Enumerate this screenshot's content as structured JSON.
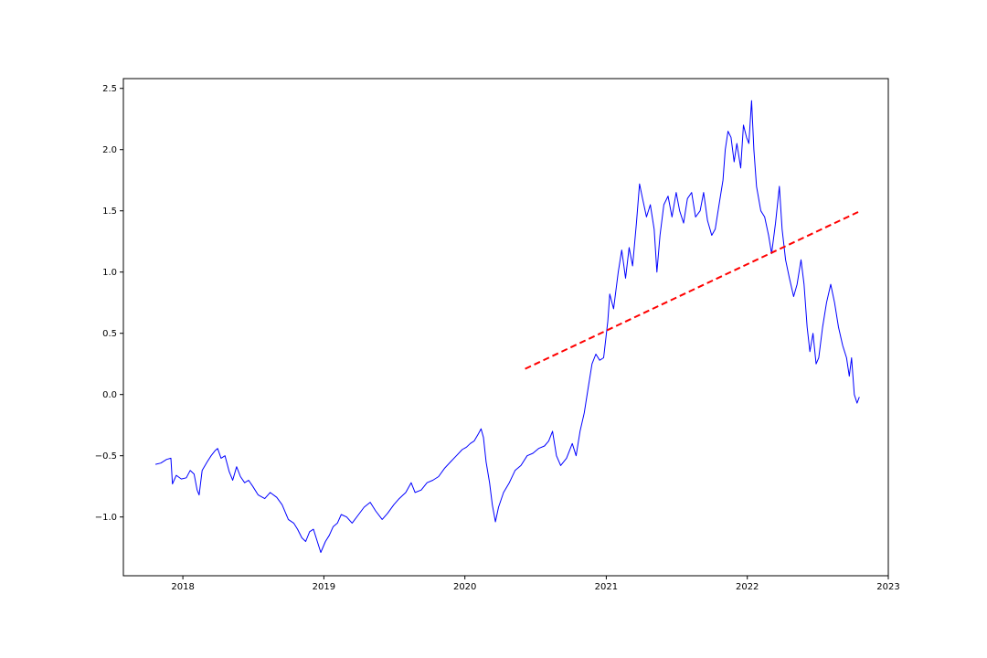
{
  "chart_data": {
    "type": "line",
    "title": "",
    "xlabel": "",
    "ylabel": "",
    "xlim": [
      "2017-07-31",
      "2023-01-01"
    ],
    "ylim": [
      -1.48,
      2.58
    ],
    "grid": false,
    "x_ticks": [
      "2018",
      "2019",
      "2020",
      "2021",
      "2022",
      "2023"
    ],
    "y_ticks": [
      "−1.0",
      "−0.5",
      "0.0",
      "0.5",
      "1.0",
      "1.5",
      "2.0",
      "2.5"
    ],
    "series": [
      {
        "color": "#0000ff",
        "style": "solid",
        "points": [
          [
            "2017-10-22",
            -0.57
          ],
          [
            "2017-11-05",
            -0.56
          ],
          [
            "2017-11-20",
            -0.53
          ],
          [
            "2017-12-01",
            -0.52
          ],
          [
            "2017-12-05",
            -0.73
          ],
          [
            "2017-12-15",
            -0.66
          ],
          [
            "2017-12-28",
            -0.69
          ],
          [
            "2018-01-10",
            -0.68
          ],
          [
            "2018-01-20",
            -0.62
          ],
          [
            "2018-01-30",
            -0.65
          ],
          [
            "2018-02-07",
            -0.78
          ],
          [
            "2018-02-12",
            -0.82
          ],
          [
            "2018-02-20",
            -0.62
          ],
          [
            "2018-03-05",
            -0.55
          ],
          [
            "2018-03-15",
            -0.5
          ],
          [
            "2018-03-25",
            -0.46
          ],
          [
            "2018-04-01",
            -0.44
          ],
          [
            "2018-04-10",
            -0.52
          ],
          [
            "2018-04-20",
            -0.5
          ],
          [
            "2018-05-01",
            -0.63
          ],
          [
            "2018-05-10",
            -0.7
          ],
          [
            "2018-05-20",
            -0.59
          ],
          [
            "2018-05-30",
            -0.67
          ],
          [
            "2018-06-10",
            -0.72
          ],
          [
            "2018-06-20",
            -0.7
          ],
          [
            "2018-07-01",
            -0.75
          ],
          [
            "2018-07-15",
            -0.82
          ],
          [
            "2018-08-01",
            -0.85
          ],
          [
            "2018-08-15",
            -0.8
          ],
          [
            "2018-09-01",
            -0.84
          ],
          [
            "2018-09-15",
            -0.9
          ],
          [
            "2018-10-01",
            -1.02
          ],
          [
            "2018-10-15",
            -1.05
          ],
          [
            "2018-10-25",
            -1.1
          ],
          [
            "2018-11-05",
            -1.17
          ],
          [
            "2018-11-15",
            -1.2
          ],
          [
            "2018-11-25",
            -1.12
          ],
          [
            "2018-12-05",
            -1.1
          ],
          [
            "2018-12-15",
            -1.2
          ],
          [
            "2018-12-24",
            -1.29
          ],
          [
            "2019-01-05",
            -1.2
          ],
          [
            "2019-01-15",
            -1.15
          ],
          [
            "2019-01-25",
            -1.08
          ],
          [
            "2019-02-05",
            -1.05
          ],
          [
            "2019-02-15",
            -0.98
          ],
          [
            "2019-03-01",
            -1.0
          ],
          [
            "2019-03-15",
            -1.05
          ],
          [
            "2019-04-01",
            -0.98
          ],
          [
            "2019-04-15",
            -0.92
          ],
          [
            "2019-05-01",
            -0.88
          ],
          [
            "2019-05-15",
            -0.95
          ],
          [
            "2019-06-01",
            -1.02
          ],
          [
            "2019-06-15",
            -0.97
          ],
          [
            "2019-07-01",
            -0.9
          ],
          [
            "2019-07-15",
            -0.85
          ],
          [
            "2019-08-01",
            -0.8
          ],
          [
            "2019-08-15",
            -0.72
          ],
          [
            "2019-08-25",
            -0.8
          ],
          [
            "2019-09-10",
            -0.78
          ],
          [
            "2019-09-25",
            -0.72
          ],
          [
            "2019-10-10",
            -0.7
          ],
          [
            "2019-10-25",
            -0.67
          ],
          [
            "2019-11-10",
            -0.6
          ],
          [
            "2019-11-25",
            -0.55
          ],
          [
            "2019-12-10",
            -0.5
          ],
          [
            "2019-12-25",
            -0.45
          ],
          [
            "2020-01-05",
            -0.43
          ],
          [
            "2020-01-15",
            -0.4
          ],
          [
            "2020-01-25",
            -0.38
          ],
          [
            "2020-02-05",
            -0.32
          ],
          [
            "2020-02-12",
            -0.28
          ],
          [
            "2020-02-18",
            -0.35
          ],
          [
            "2020-02-25",
            -0.55
          ],
          [
            "2020-03-05",
            -0.72
          ],
          [
            "2020-03-12",
            -0.9
          ],
          [
            "2020-03-20",
            -1.04
          ],
          [
            "2020-03-28",
            -0.92
          ],
          [
            "2020-04-10",
            -0.8
          ],
          [
            "2020-04-25",
            -0.72
          ],
          [
            "2020-05-10",
            -0.62
          ],
          [
            "2020-05-25",
            -0.58
          ],
          [
            "2020-06-10",
            -0.5
          ],
          [
            "2020-06-25",
            -0.48
          ],
          [
            "2020-07-10",
            -0.44
          ],
          [
            "2020-07-25",
            -0.42
          ],
          [
            "2020-08-05",
            -0.38
          ],
          [
            "2020-08-15",
            -0.3
          ],
          [
            "2020-08-25",
            -0.5
          ],
          [
            "2020-09-05",
            -0.58
          ],
          [
            "2020-09-20",
            -0.52
          ],
          [
            "2020-10-05",
            -0.4
          ],
          [
            "2020-10-15",
            -0.5
          ],
          [
            "2020-10-25",
            -0.3
          ],
          [
            "2020-11-05",
            -0.15
          ],
          [
            "2020-11-15",
            0.05
          ],
          [
            "2020-11-25",
            0.25
          ],
          [
            "2020-12-05",
            0.33
          ],
          [
            "2020-12-15",
            0.28
          ],
          [
            "2020-12-25",
            0.3
          ],
          [
            "2021-01-05",
            0.6
          ],
          [
            "2021-01-10",
            0.82
          ],
          [
            "2021-01-20",
            0.7
          ],
          [
            "2021-02-01",
            1.0
          ],
          [
            "2021-02-10",
            1.18
          ],
          [
            "2021-02-20",
            0.95
          ],
          [
            "2021-03-01",
            1.2
          ],
          [
            "2021-03-10",
            1.05
          ],
          [
            "2021-03-20",
            1.4
          ],
          [
            "2021-03-28",
            1.72
          ],
          [
            "2021-04-05",
            1.6
          ],
          [
            "2021-04-15",
            1.45
          ],
          [
            "2021-04-25",
            1.55
          ],
          [
            "2021-05-05",
            1.35
          ],
          [
            "2021-05-12",
            1.0
          ],
          [
            "2021-05-20",
            1.3
          ],
          [
            "2021-05-30",
            1.55
          ],
          [
            "2021-06-10",
            1.62
          ],
          [
            "2021-06-20",
            1.45
          ],
          [
            "2021-07-01",
            1.65
          ],
          [
            "2021-07-10",
            1.5
          ],
          [
            "2021-07-20",
            1.4
          ],
          [
            "2021-07-30",
            1.6
          ],
          [
            "2021-08-10",
            1.65
          ],
          [
            "2021-08-20",
            1.45
          ],
          [
            "2021-09-01",
            1.5
          ],
          [
            "2021-09-10",
            1.65
          ],
          [
            "2021-09-20",
            1.42
          ],
          [
            "2021-10-01",
            1.3
          ],
          [
            "2021-10-10",
            1.35
          ],
          [
            "2021-10-20",
            1.55
          ],
          [
            "2021-10-30",
            1.75
          ],
          [
            "2021-11-05",
            2.0
          ],
          [
            "2021-11-12",
            2.15
          ],
          [
            "2021-11-20",
            2.1
          ],
          [
            "2021-11-28",
            1.9
          ],
          [
            "2021-12-05",
            2.05
          ],
          [
            "2021-12-15",
            1.85
          ],
          [
            "2021-12-22",
            2.2
          ],
          [
            "2021-12-30",
            2.1
          ],
          [
            "2022-01-05",
            2.05
          ],
          [
            "2022-01-12",
            2.4
          ],
          [
            "2022-01-18",
            2.0
          ],
          [
            "2022-01-25",
            1.7
          ],
          [
            "2022-02-05",
            1.5
          ],
          [
            "2022-02-15",
            1.45
          ],
          [
            "2022-02-25",
            1.3
          ],
          [
            "2022-03-05",
            1.15
          ],
          [
            "2022-03-15",
            1.4
          ],
          [
            "2022-03-25",
            1.7
          ],
          [
            "2022-04-01",
            1.35
          ],
          [
            "2022-04-10",
            1.1
          ],
          [
            "2022-04-20",
            0.95
          ],
          [
            "2022-05-01",
            0.8
          ],
          [
            "2022-05-10",
            0.9
          ],
          [
            "2022-05-20",
            1.1
          ],
          [
            "2022-05-28",
            0.9
          ],
          [
            "2022-06-05",
            0.55
          ],
          [
            "2022-06-12",
            0.35
          ],
          [
            "2022-06-20",
            0.5
          ],
          [
            "2022-06-28",
            0.25
          ],
          [
            "2022-07-05",
            0.3
          ],
          [
            "2022-07-15",
            0.55
          ],
          [
            "2022-07-25",
            0.75
          ],
          [
            "2022-08-05",
            0.9
          ],
          [
            "2022-08-15",
            0.75
          ],
          [
            "2022-08-25",
            0.55
          ],
          [
            "2022-09-05",
            0.4
          ],
          [
            "2022-09-15",
            0.3
          ],
          [
            "2022-09-22",
            0.15
          ],
          [
            "2022-09-28",
            0.3
          ],
          [
            "2022-10-05",
            0.0
          ],
          [
            "2022-10-12",
            -0.07
          ],
          [
            "2022-10-18",
            -0.02
          ]
        ]
      },
      {
        "color": "#ff0000",
        "style": "dashed",
        "points": [
          [
            "2020-06-05",
            0.21
          ],
          [
            "2022-10-15",
            1.49
          ]
        ]
      }
    ]
  }
}
